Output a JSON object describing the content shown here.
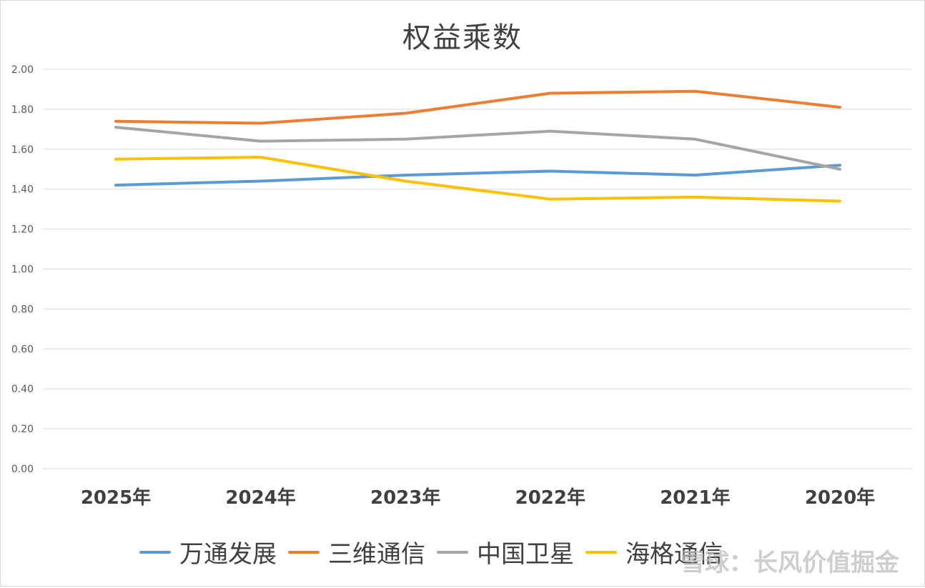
{
  "chart_data": {
    "type": "line",
    "title": "权益乘数",
    "categories": [
      "2025年",
      "2024年",
      "2023年",
      "2022年",
      "2021年",
      "2020年"
    ],
    "ylim": [
      0,
      2.0
    ],
    "yticks": [
      "0.00",
      "0.20",
      "0.40",
      "0.60",
      "0.80",
      "1.00",
      "1.20",
      "1.40",
      "1.60",
      "1.80",
      "2.00"
    ],
    "ytick_values": [
      0,
      0.2,
      0.4,
      0.6,
      0.8,
      1.0,
      1.2,
      1.4,
      1.6,
      1.8,
      2.0
    ],
    "grid": true,
    "legend_position": "bottom",
    "series": [
      {
        "name": "万通发展",
        "color": "#5b9bd5",
        "values": [
          1.42,
          1.44,
          1.47,
          1.49,
          1.47,
          1.52
        ]
      },
      {
        "name": "三维通信",
        "color": "#ed7d31",
        "values": [
          1.74,
          1.73,
          1.78,
          1.88,
          1.89,
          1.81
        ]
      },
      {
        "name": "中国卫星",
        "color": "#a5a5a5",
        "values": [
          1.71,
          1.64,
          1.65,
          1.69,
          1.65,
          1.5
        ]
      },
      {
        "name": "海格通信",
        "color": "#ffc000",
        "values": [
          1.55,
          1.56,
          1.44,
          1.35,
          1.36,
          1.34
        ]
      }
    ]
  },
  "watermark": "雪球：长风价值掘金"
}
